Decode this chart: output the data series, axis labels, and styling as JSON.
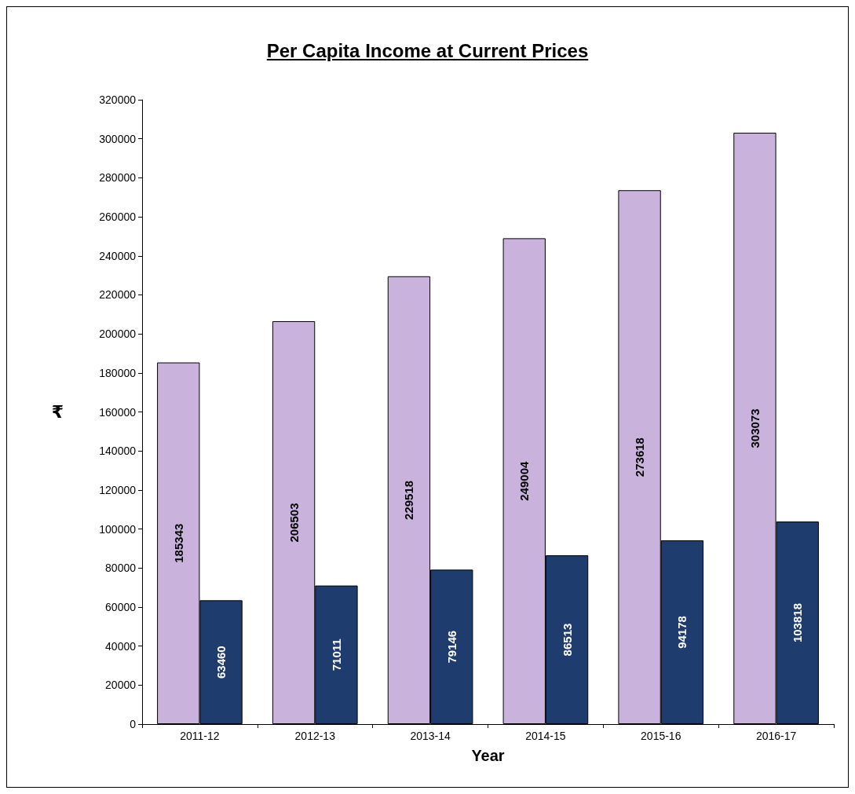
{
  "chart_data": {
    "type": "bar",
    "title": "Per Capita Income at Current Prices",
    "xlabel": "Year",
    "ylabel": "₹",
    "categories": [
      "2011-12",
      "2012-13",
      "2013-14",
      "2014-15",
      "2015-16",
      "2016-17"
    ],
    "series": [
      {
        "color": "#c9b3dd",
        "values": [
          185343,
          206503,
          229518,
          249004,
          273618,
          303073
        ]
      },
      {
        "color": "#1f3c6e",
        "values": [
          63460,
          71011,
          79146,
          86513,
          94178,
          103818
        ]
      }
    ],
    "ylim": [
      0,
      320000
    ],
    "yticks": [
      0,
      20000,
      40000,
      60000,
      80000,
      100000,
      120000,
      140000,
      160000,
      180000,
      200000,
      220000,
      240000,
      260000,
      280000,
      300000,
      320000
    ],
    "grid": false,
    "data_labels": true
  }
}
